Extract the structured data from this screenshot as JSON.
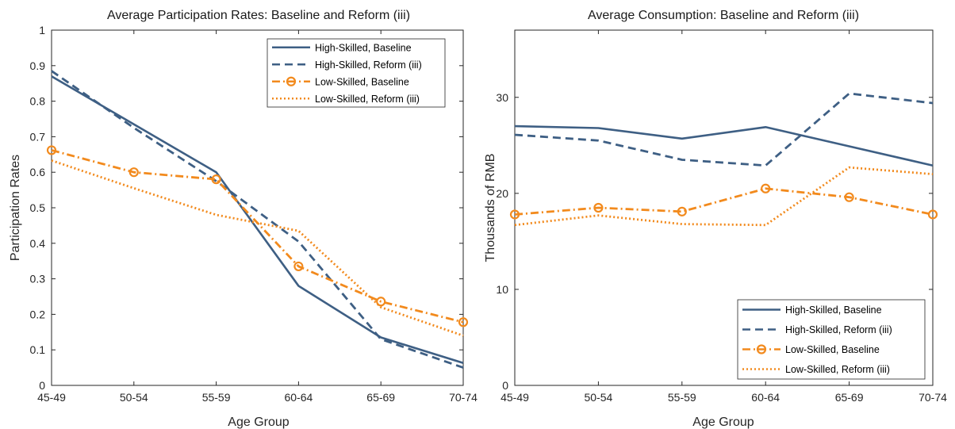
{
  "colors": {
    "high": "#3e5f84",
    "low": "#f28a1d",
    "axis": "#262626"
  },
  "chart_data": [
    {
      "type": "line",
      "title": "Average Participation Rates: Baseline and Reform (iii)",
      "xlabel": "Age Group",
      "ylabel": "Participation Rates",
      "categories": [
        "45-49",
        "50-54",
        "55-59",
        "60-64",
        "65-69",
        "70-74"
      ],
      "ylim": [
        0,
        1
      ],
      "yticks": [
        "0",
        "0.1",
        "0.2",
        "0.3",
        "0.4",
        "0.5",
        "0.6",
        "0.7",
        "0.8",
        "0.9",
        "1"
      ],
      "grid": false,
      "legend_position": "top-right",
      "series": [
        {
          "name": "High-Skilled, Baseline",
          "values": [
            0.87,
            0.735,
            0.6,
            0.28,
            0.135,
            0.063
          ],
          "color": "#3e5f84",
          "style": "solid",
          "marker": "none"
        },
        {
          "name": "High-Skilled, Reform (iii)",
          "values": [
            0.885,
            0.725,
            0.575,
            0.405,
            0.13,
            0.05
          ],
          "color": "#3e5f84",
          "style": "dashed",
          "marker": "none"
        },
        {
          "name": "Low-Skilled, Baseline",
          "values": [
            0.662,
            0.6,
            0.58,
            0.335,
            0.236,
            0.178
          ],
          "color": "#f28a1d",
          "style": "dashdot",
          "marker": "circle"
        },
        {
          "name": "Low-Skilled, Reform (iii)",
          "values": [
            0.633,
            0.555,
            0.48,
            0.435,
            0.22,
            0.14
          ],
          "color": "#f28a1d",
          "style": "dotted",
          "marker": "none"
        }
      ]
    },
    {
      "type": "line",
      "title": "Average Consumption: Baseline and Reform (iii)",
      "xlabel": "Age Group",
      "ylabel": "Thousands of RMB",
      "categories": [
        "45-49",
        "50-54",
        "55-59",
        "60-64",
        "65-69",
        "70-74"
      ],
      "ylim": [
        0,
        37
      ],
      "yticks": [
        "0",
        "10",
        "20",
        "30"
      ],
      "ytick_values": [
        0,
        10,
        20,
        30
      ],
      "grid": false,
      "legend_position": "bottom-right",
      "series": [
        {
          "name": "High-Skilled, Baseline",
          "values": [
            27.0,
            26.8,
            25.7,
            26.9,
            24.9,
            22.9
          ],
          "color": "#3e5f84",
          "style": "solid",
          "marker": "none"
        },
        {
          "name": "High-Skilled, Reform (iii)",
          "values": [
            26.1,
            25.5,
            23.5,
            22.9,
            30.4,
            29.4
          ],
          "color": "#3e5f84",
          "style": "dashed",
          "marker": "none"
        },
        {
          "name": "Low-Skilled, Baseline",
          "values": [
            17.8,
            18.5,
            18.1,
            20.5,
            19.6,
            17.8
          ],
          "color": "#f28a1d",
          "style": "dashdot",
          "marker": "circle"
        },
        {
          "name": "Low-Skilled, Reform (iii)",
          "values": [
            16.7,
            17.7,
            16.8,
            16.7,
            22.7,
            22.0
          ],
          "color": "#f28a1d",
          "style": "dotted",
          "marker": "none"
        }
      ]
    }
  ]
}
